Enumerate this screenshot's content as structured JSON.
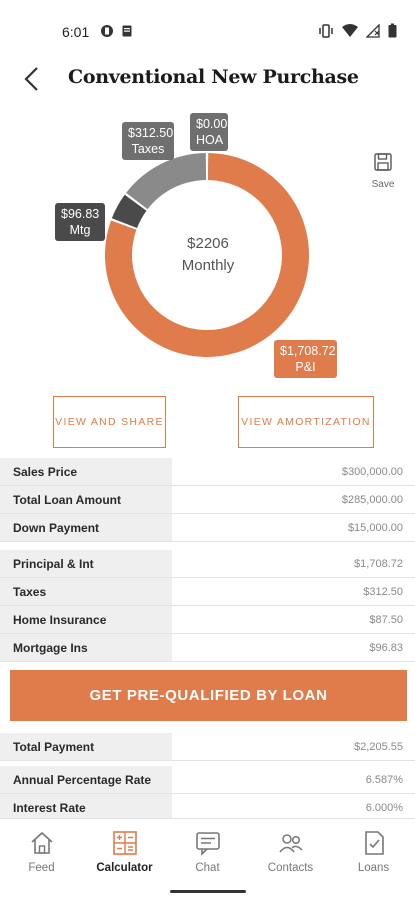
{
  "status": {
    "time": "6:01"
  },
  "header": {
    "title": "Conventional New Purchase"
  },
  "chart_data": {
    "type": "pie",
    "categories": [
      "P&I",
      "Mtg Ins",
      "Taxes",
      "HOA"
    ],
    "values": [
      1708.72,
      96.83,
      312.5,
      0.0
    ],
    "colors": [
      "#e07b4b",
      "#4a4a4a",
      "#8a8a8a",
      "#9e9e9e"
    ],
    "center_amount": "$2206",
    "center_label": "Monthly"
  },
  "callouts": {
    "taxes": {
      "amount": "$312.50",
      "label": "Taxes"
    },
    "hoa": {
      "amount": "$0.00",
      "label": "HOA"
    },
    "mtgins": {
      "amount": "$96.83",
      "label": "Mtg Ins"
    },
    "pi": {
      "amount": "$1,708.72",
      "label": "P&I"
    }
  },
  "save_label": "Save",
  "buttons": {
    "share": "VIEW AND SHARE",
    "amortization": "VIEW AMORTIZATION"
  },
  "table1": [
    {
      "label": "Sales Price",
      "value": "$300,000.00"
    },
    {
      "label": "Total Loan Amount",
      "value": "$285,000.00"
    },
    {
      "label": "Down Payment",
      "value": "$15,000.00"
    }
  ],
  "table2": [
    {
      "label": "Principal & Int",
      "value": "$1,708.72"
    },
    {
      "label": "Taxes",
      "value": "$312.50"
    },
    {
      "label": "Home Insurance",
      "value": "$87.50"
    },
    {
      "label": "Mortgage Ins",
      "value": "$96.83"
    }
  ],
  "cta": "GET PRE-QUALIFIED BY LOAN",
  "table3": [
    {
      "label": "Total Payment",
      "value": "$2,205.55"
    }
  ],
  "table4": [
    {
      "label": "Annual Percentage Rate",
      "value": "6.587%"
    },
    {
      "label": "Interest Rate",
      "value": "6.000%"
    }
  ],
  "nav": [
    {
      "label": "Feed",
      "icon": "home-icon"
    },
    {
      "label": "Calculator",
      "icon": "calculator-icon"
    },
    {
      "label": "Chat",
      "icon": "chat-icon"
    },
    {
      "label": "Contacts",
      "icon": "contacts-icon"
    },
    {
      "label": "Loans",
      "icon": "loans-icon"
    }
  ],
  "accent": "#e07b4b"
}
